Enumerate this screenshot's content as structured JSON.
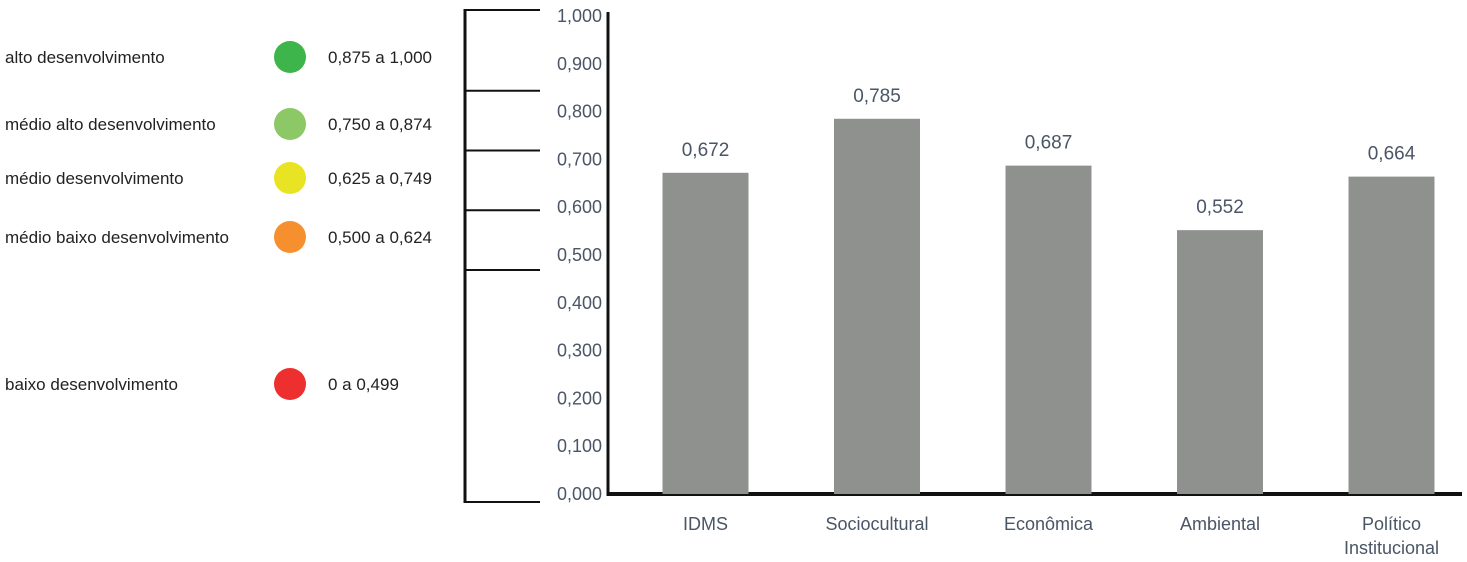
{
  "legend": {
    "items": [
      {
        "label": "alto desenvolvimento",
        "range": "0,875 a 1,000",
        "color": "#3db54a"
      },
      {
        "label": "médio alto desenvolvimento",
        "range": "0,750 a 0,874",
        "color": "#8cc865"
      },
      {
        "label": "médio desenvolvimento",
        "range": "0,625 a 0,749",
        "color": "#e8e423"
      },
      {
        "label": "médio baixo desenvolvimento",
        "range": "0,500 a 0,624",
        "color": "#f6902e"
      },
      {
        "label": "baixo desenvolvimento",
        "range": "0 a 0,499",
        "color": "#ee2f2f"
      }
    ]
  },
  "chart_data": {
    "type": "bar",
    "categories": [
      "IDMS",
      "Sociocultural",
      "Econômica",
      "Ambiental",
      "Político Institucional"
    ],
    "values": [
      0.672,
      0.785,
      0.687,
      0.552,
      0.664
    ],
    "value_labels": [
      "0,672",
      "0,785",
      "0,687",
      "0,552",
      "0,664"
    ],
    "ylim": [
      0,
      1
    ],
    "ytick_values": [
      0,
      0.1,
      0.2,
      0.3,
      0.4,
      0.5,
      0.6,
      0.7,
      0.8,
      0.9,
      1.0
    ],
    "ytick_labels": [
      "0,000",
      "0,100",
      "0,200",
      "0,300",
      "0,400",
      "0,500",
      "0,600",
      "0,700",
      "0,800",
      "0,900",
      "1,000"
    ],
    "bracket_boundaries": [
      0,
      0.5,
      0.625,
      0.75,
      0.875,
      1.0
    ],
    "title": "",
    "xlabel": "",
    "ylabel": "",
    "grid": false,
    "legend_position": "left",
    "bar_color": "#8f918f",
    "axis_color": "#111111"
  }
}
